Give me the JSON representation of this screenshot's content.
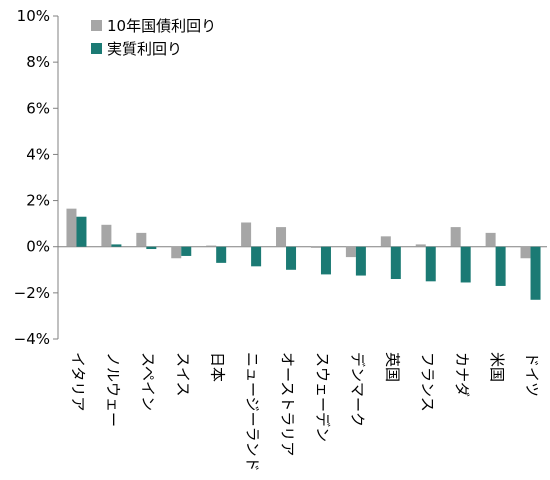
{
  "chart_data": {
    "type": "bar",
    "categories": [
      "イタリア",
      "ノルウェー",
      "スペイン",
      "スイス",
      "日本",
      "ニュージーランド",
      "オーストラリア",
      "スウェーデン",
      "デンマーク",
      "英国",
      "フランス",
      "カナダ",
      "米国",
      "ドイツ"
    ],
    "series": [
      {
        "name": "10年国債利回り",
        "color": "#a6a6a6",
        "values": [
          1.65,
          0.95,
          0.6,
          -0.5,
          0.05,
          1.05,
          0.85,
          -0.05,
          -0.45,
          0.45,
          0.1,
          0.85,
          0.6,
          -0.5
        ]
      },
      {
        "name": "実質利回り",
        "color": "#1b7a74",
        "values": [
          1.3,
          0.1,
          -0.1,
          -0.4,
          -0.7,
          -0.85,
          -1.0,
          -1.2,
          -1.25,
          -1.4,
          -1.5,
          -1.55,
          -1.7,
          -2.3
        ]
      }
    ],
    "ylim": [
      -4,
      10
    ],
    "yticks": [
      {
        "value": 10,
        "label": "10%"
      },
      {
        "value": 8,
        "label": "8%"
      },
      {
        "value": 6,
        "label": "6%"
      },
      {
        "value": 4,
        "label": "4%"
      },
      {
        "value": 2,
        "label": "2%"
      },
      {
        "value": 0,
        "label": "0%"
      },
      {
        "value": -2,
        "label": "−2%"
      },
      {
        "value": -4,
        "label": "−4%"
      }
    ],
    "negative_tick_color": "#c00000",
    "grid": false,
    "legend_position": "top-left",
    "title": "",
    "xlabel": "",
    "ylabel": ""
  }
}
